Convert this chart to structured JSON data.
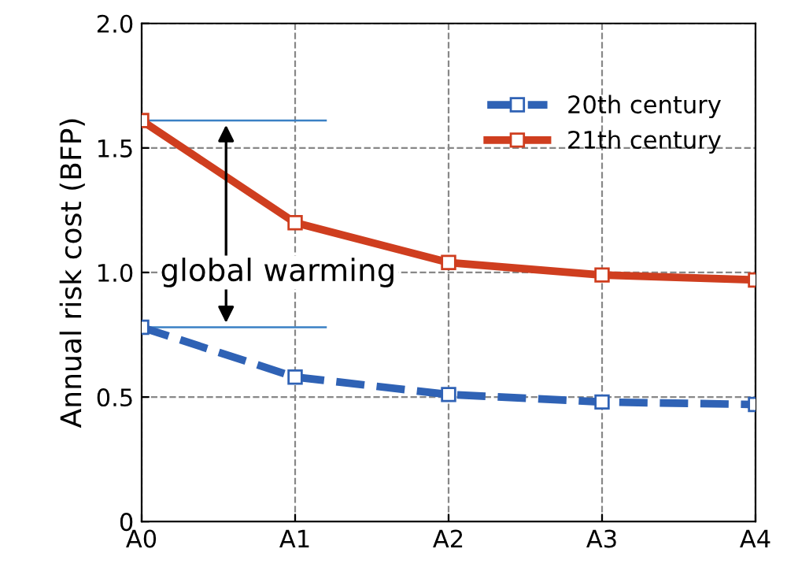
{
  "chart_data": {
    "type": "line",
    "ylabel": "Annual risk cost (BFP)",
    "categories": [
      "A0",
      "A1",
      "A2",
      "A3",
      "A4"
    ],
    "series": [
      {
        "name": "20th century",
        "color": "#2f62b5",
        "values": [
          0.78,
          0.58,
          0.51,
          0.48,
          0.47
        ],
        "line_style": "dashed"
      },
      {
        "name": "21th century",
        "color": "#cf3e1f",
        "values": [
          1.61,
          1.2,
          1.04,
          0.99,
          0.97
        ],
        "line_style": "solid"
      }
    ],
    "ylim": [
      0,
      2
    ],
    "yticks": [
      0,
      {
        "value": 0.5,
        "label": "0.5"
      },
      {
        "value": 1.0,
        "label": "1.0"
      },
      {
        "value": 1.5,
        "label": "1.5"
      },
      {
        "value": 2.0,
        "label": "2.0"
      }
    ],
    "ref_lines": [
      {
        "axis": "y",
        "value": 1.61,
        "color": "#3a80c4"
      },
      {
        "axis": "y",
        "value": 0.78,
        "color": "#3a80c4"
      }
    ],
    "annotations": [
      "global warming"
    ],
    "grid": true,
    "legend": "top right",
    "marker": "square"
  }
}
